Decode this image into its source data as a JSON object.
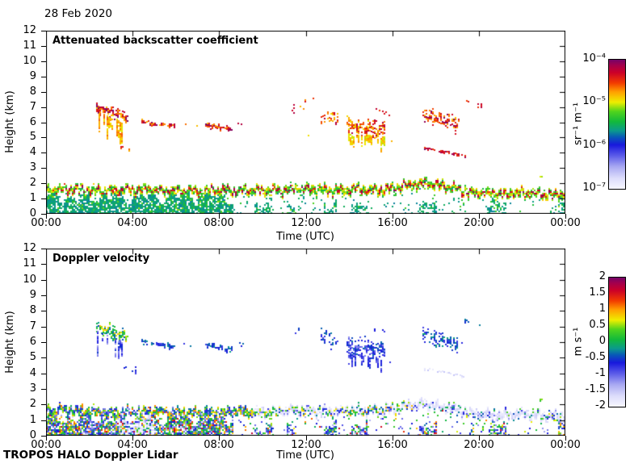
{
  "figure": {
    "date_label": "28 Feb 2020",
    "credit_label": "TROPOS HALO Doppler Lidar"
  },
  "axes": {
    "x_label": "Time (UTC)",
    "y_label": "Height (km)",
    "x_tick_labels": [
      "00:00",
      "04:00",
      "08:00",
      "12:00",
      "16:00",
      "20:00",
      "00:00"
    ],
    "y_tick_labels": [
      "0",
      "1",
      "2",
      "3",
      "4",
      "5",
      "6",
      "7",
      "8",
      "9",
      "10",
      "11",
      "12"
    ]
  },
  "panels": [
    {
      "title": "Attenuated backscatter coefficient",
      "colorbar": {
        "unit_label": "sr⁻¹ m⁻¹",
        "tick_labels": [
          "10⁻⁴",
          "10⁻⁵",
          "10⁻⁶",
          "10⁻⁷"
        ]
      }
    },
    {
      "title": "Doppler velocity",
      "colorbar": {
        "unit_label": "m s⁻¹",
        "tick_labels": [
          "2",
          "1.5",
          "1",
          "0.5",
          "0",
          "-0.5",
          "-1",
          "-1.5",
          "-2"
        ]
      }
    }
  ],
  "chart_data": {
    "type": "heatmap",
    "date": "28 Feb 2020",
    "instrument": "TROPOS HALO Doppler Lidar",
    "x_axis": {
      "label": "Time (UTC)",
      "range_hours": [
        0,
        24
      ],
      "tick_hours": [
        0,
        4,
        8,
        12,
        16,
        20,
        24
      ],
      "tick_labels": [
        "00:00",
        "04:00",
        "08:00",
        "12:00",
        "16:00",
        "20:00",
        "00:00"
      ]
    },
    "y_axis": {
      "label": "Height (km)",
      "range_km": [
        0,
        12
      ],
      "tick_step_km": 1
    },
    "colormap_stops": [
      [
        0.0,
        "#f6f6ff"
      ],
      [
        0.08,
        "#dedefb"
      ],
      [
        0.17,
        "#aaaaf2"
      ],
      [
        0.26,
        "#5858e8"
      ],
      [
        0.34,
        "#1818dd"
      ],
      [
        0.4,
        "#0858b8"
      ],
      [
        0.45,
        "#0b9a8d"
      ],
      [
        0.52,
        "#12b93c"
      ],
      [
        0.6,
        "#52d41c"
      ],
      [
        0.67,
        "#eeee00"
      ],
      [
        0.75,
        "#ffa000"
      ],
      [
        0.82,
        "#f23b00"
      ],
      [
        0.9,
        "#cc0028"
      ],
      [
        0.96,
        "#a1004e"
      ],
      [
        1.0,
        "#730468"
      ]
    ],
    "panels": [
      {
        "title": "Attenuated backscatter coefficient",
        "unit": "sr⁻¹ m⁻¹",
        "scale": "log",
        "value_range": [
          1e-07,
          0.0001
        ],
        "colorbar_tick_labels": [
          "10⁻⁴",
          "10⁻⁵",
          "10⁻⁶",
          "10⁻⁷"
        ],
        "note": "backscatter_norm fields below are log-normalized: 0 = 1e-7, 1 = 1e-4 sr-1 m-1"
      },
      {
        "title": "Doppler velocity",
        "unit": "m s⁻¹",
        "scale": "linear",
        "value_range": [
          -2,
          2
        ],
        "colorbar_tick_labels": [
          2,
          1.5,
          1,
          0.5,
          0,
          -0.5,
          -1,
          -1.5,
          -2
        ]
      }
    ],
    "boundary_layer": {
      "top_km": [
        [
          0,
          1.9
        ],
        [
          1,
          1.95
        ],
        [
          2,
          1.85
        ],
        [
          3,
          1.8
        ],
        [
          4,
          1.85
        ],
        [
          5,
          1.9
        ],
        [
          6,
          1.8
        ],
        [
          7,
          1.75
        ],
        [
          8,
          1.8
        ],
        [
          9,
          1.85
        ],
        [
          10,
          1.8
        ],
        [
          11,
          1.9
        ],
        [
          12,
          1.95
        ],
        [
          13,
          1.85
        ],
        [
          14,
          1.9
        ],
        [
          15,
          1.85
        ],
        [
          16,
          2.0
        ],
        [
          17,
          2.25
        ],
        [
          17.5,
          2.35
        ],
        [
          18,
          2.2
        ],
        [
          18.8,
          2.0
        ],
        [
          19.5,
          1.75
        ],
        [
          20,
          1.65
        ],
        [
          21,
          1.65
        ],
        [
          22,
          1.7
        ],
        [
          23,
          1.6
        ],
        [
          24,
          1.55
        ]
      ],
      "cap_band_thickness_km": 0.42,
      "cap_band_backscatter_norm": [
        0.48,
        1.0
      ],
      "sub_layer": {
        "dense_until_hour": 8.6,
        "dense_fill": 0.82,
        "clump_fill": 0.55,
        "gap_fill": 0.06,
        "backscatter_norm": [
          0.43,
          0.6
        ],
        "velocity_ms": [
          -1.4,
          1.7
        ]
      },
      "velocity_cap_band_regimes": [
        {
          "t": [
            0,
            9.5
          ],
          "gray_fraction": 0.05,
          "vel": [
            -1.2,
            1.2
          ]
        },
        {
          "t": [
            9.5,
            17
          ],
          "gray_fraction": 0.5,
          "vel": [
            -1.2,
            1.0
          ]
        },
        {
          "t": [
            17,
            24
          ],
          "gray_fraction": 0.72,
          "vel": [
            -1.3,
            0.7
          ]
        }
      ],
      "gray_velocity_ms": [
        -1.9,
        -1.55
      ],
      "precip_column": {
        "t": [
          3.35,
          5.0
        ],
        "h_top_km": 2.0,
        "fraction": 0.5
      },
      "surface_line": {
        "backscatter_norm": [
          0.45,
          0.6
        ],
        "velocity_ms": [
          1.7,
          2.0
        ]
      }
    },
    "cloud_features": [
      {
        "id": "c1",
        "kind": "cluster",
        "t": [
          2.3,
          3.75
        ],
        "h": [
          7.05,
          6.3
        ],
        "thick": 0.75,
        "density": 0.8,
        "backscatter_norm": [
          0.7,
          1.0
        ],
        "velocity_ms": [
          -0.5,
          0.9
        ]
      },
      {
        "id": "c1v",
        "kind": "virga",
        "t": [
          2.35,
          3.55
        ],
        "h": [
          6.7,
          6.0
        ],
        "len": [
          0.4,
          1.8
        ],
        "density": 0.5,
        "backscatter_norm": [
          0.66,
          0.8
        ],
        "velocity_ms": [
          -1.3,
          -0.5
        ]
      },
      {
        "id": "c1s",
        "kind": "specks",
        "t": [
          3.45,
          4.15
        ],
        "h": [
          4.35,
          4.3
        ],
        "thick": 0.4,
        "density": 0.3,
        "backscatter_norm": [
          0.7,
          0.9
        ],
        "velocity_ms": [
          -0.9,
          -0.4
        ]
      },
      {
        "id": "c2",
        "kind": "band",
        "t": [
          4.4,
          5.9
        ],
        "h": [
          6.1,
          5.75
        ],
        "thick": 0.32,
        "density": 0.85,
        "backscatter_norm": [
          0.72,
          1.0
        ],
        "velocity_ms": [
          -0.9,
          -0.2
        ]
      },
      {
        "id": "c3",
        "kind": "specks",
        "t": [
          6.35,
          6.95
        ],
        "h": [
          5.95,
          5.85
        ],
        "thick": 0.3,
        "density": 0.55,
        "backscatter_norm": [
          0.72,
          0.95
        ],
        "velocity_ms": [
          -0.8,
          -0.2
        ]
      },
      {
        "id": "c4",
        "kind": "band",
        "t": [
          7.35,
          8.6
        ],
        "h": [
          5.95,
          5.55
        ],
        "thick": 0.34,
        "density": 0.9,
        "backscatter_norm": [
          0.72,
          1.0
        ],
        "velocity_ms": [
          -0.9,
          -0.2
        ]
      },
      {
        "id": "c5",
        "kind": "specks",
        "t": [
          8.85,
          9.1
        ],
        "h": [
          5.95,
          5.95
        ],
        "thick": 0.25,
        "density": 0.5,
        "backscatter_norm": [
          0.75,
          0.95
        ],
        "velocity_ms": [
          -0.7,
          -0.3
        ]
      },
      {
        "id": "c6",
        "kind": "specks",
        "t": [
          11.35,
          11.9
        ],
        "h": [
          7.0,
          6.7
        ],
        "thick": 0.55,
        "density": 0.4,
        "backscatter_norm": [
          0.72,
          0.95
        ],
        "velocity_ms": [
          -0.8,
          0.1
        ]
      },
      {
        "id": "c7",
        "kind": "specks",
        "t": [
          11.95,
          12.35
        ],
        "h": [
          7.6,
          7.55
        ],
        "thick": 0.45,
        "density": 0.55,
        "backscatter_norm": [
          0.72,
          0.95
        ],
        "velocity_ms": [
          -0.9,
          -0.2
        ]
      },
      {
        "id": "c8",
        "kind": "specks",
        "t": [
          12.0,
          12.15
        ],
        "h": [
          5.15,
          5.1
        ],
        "thick": 0.25,
        "density": 0.5,
        "backscatter_norm": [
          0.66,
          0.78
        ],
        "velocity_ms": [
          -0.6,
          -0.2
        ]
      },
      {
        "id": "c9",
        "kind": "cluster",
        "t": [
          12.7,
          13.45
        ],
        "h": [
          6.45,
          6.15
        ],
        "thick": 0.85,
        "density": 0.5,
        "backscatter_norm": [
          0.68,
          0.95
        ],
        "velocity_ms": [
          -1.0,
          -0.2
        ]
      },
      {
        "id": "c10",
        "kind": "cluster",
        "t": [
          13.9,
          15.65
        ],
        "h": [
          5.8,
          5.5
        ],
        "thick": 1.1,
        "density": 0.75,
        "backscatter_norm": [
          0.66,
          0.95
        ],
        "velocity_ms": [
          -1.2,
          -0.3
        ]
      },
      {
        "id": "c10v",
        "kind": "virga",
        "t": [
          13.95,
          15.6
        ],
        "h": [
          5.3,
          5.0
        ],
        "len": [
          0.3,
          0.9
        ],
        "density": 0.5,
        "backscatter_norm": [
          0.64,
          0.78
        ],
        "velocity_ms": [
          -1.1,
          -0.5
        ]
      },
      {
        "id": "c10t",
        "kind": "specks",
        "t": [
          15.15,
          15.95
        ],
        "h": [
          6.9,
          6.6
        ],
        "thick": 0.45,
        "density": 0.45,
        "backscatter_norm": [
          0.78,
          1.0
        ],
        "velocity_ms": [
          -0.8,
          -0.2
        ]
      },
      {
        "id": "c11",
        "kind": "specks",
        "t": [
          15.7,
          16.0
        ],
        "h": [
          4.8,
          4.75
        ],
        "thick": 0.3,
        "density": 0.45,
        "backscatter_norm": [
          0.66,
          0.8
        ],
        "velocity_ms": [
          -0.8,
          -0.4
        ]
      },
      {
        "id": "c12",
        "kind": "cluster",
        "t": [
          17.4,
          18.95
        ],
        "h": [
          6.5,
          5.9
        ],
        "thick": 0.95,
        "density": 0.55,
        "backscatter_norm": [
          0.7,
          1.0
        ],
        "velocity_ms": [
          -0.9,
          -0.1
        ]
      },
      {
        "id": "c13",
        "kind": "specks",
        "t": [
          18.95,
          19.35
        ],
        "h": [
          6.1,
          6.0
        ],
        "thick": 0.5,
        "density": 0.4,
        "backscatter_norm": [
          0.72,
          0.95
        ],
        "velocity_ms": [
          -0.8,
          -0.2
        ]
      },
      {
        "id": "c14",
        "kind": "line",
        "t": [
          17.45,
          19.35
        ],
        "h": [
          4.35,
          3.85
        ],
        "thick": 0.14,
        "density": 0.92,
        "backscatter_norm": [
          0.82,
          1.0
        ],
        "velocity_ms": [
          -1.9,
          -1.5
        ]
      },
      {
        "id": "c15",
        "kind": "specks",
        "t": [
          19.35,
          19.5
        ],
        "h": [
          7.5,
          7.45
        ],
        "thick": 0.35,
        "density": 0.5,
        "backscatter_norm": [
          0.78,
          0.95
        ],
        "velocity_ms": [
          -0.6,
          -0.2
        ]
      },
      {
        "id": "c16",
        "kind": "specks",
        "t": [
          19.95,
          20.1
        ],
        "h": [
          7.2,
          7.15
        ],
        "thick": 0.3,
        "density": 0.5,
        "backscatter_norm": [
          0.78,
          0.95
        ],
        "velocity_ms": [
          -0.6,
          -0.2
        ]
      },
      {
        "id": "c17",
        "kind": "specks",
        "t": [
          22.8,
          23.0
        ],
        "h": [
          2.45,
          2.4
        ],
        "thick": 0.25,
        "density": 0.4,
        "backscatter_norm": [
          0.6,
          0.7
        ],
        "velocity_ms": [
          0.2,
          0.6
        ]
      }
    ]
  }
}
